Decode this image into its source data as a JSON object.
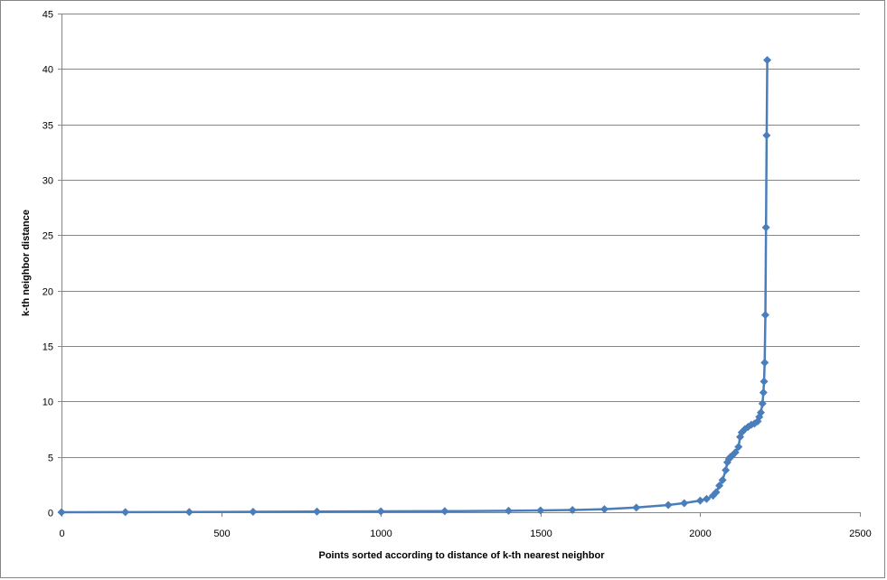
{
  "chart_data": {
    "type": "line",
    "title": "",
    "xlabel": "Points sorted according  to distance of k-th nearest neighbor",
    "ylabel": "k-th neighbor distance",
    "xlim": [
      0,
      2500
    ],
    "ylim": [
      0,
      45
    ],
    "x_ticks": [
      0,
      500,
      1000,
      1500,
      2000,
      2500
    ],
    "y_ticks": [
      0,
      5,
      10,
      15,
      20,
      25,
      30,
      35,
      40,
      45
    ],
    "grid": "horizontal",
    "legend": "none",
    "marker": "diamond",
    "series": [
      {
        "x": [
          0,
          200,
          400,
          600,
          800,
          1000,
          1200,
          1400,
          1500,
          1600,
          1700,
          1800,
          1900,
          1950,
          2000,
          2020,
          2040,
          2050,
          2060,
          2070,
          2080,
          2085,
          2090,
          2095,
          2100,
          2110,
          2120,
          2125,
          2130,
          2140,
          2150,
          2160,
          2170,
          2180,
          2185,
          2190,
          2195,
          2198,
          2200,
          2202,
          2204,
          2206,
          2208,
          2210
        ],
        "y": [
          0.0,
          0.01,
          0.02,
          0.04,
          0.06,
          0.08,
          0.1,
          0.13,
          0.16,
          0.2,
          0.28,
          0.42,
          0.65,
          0.82,
          1.05,
          1.2,
          1.5,
          1.8,
          2.4,
          2.9,
          3.8,
          4.5,
          4.8,
          5.0,
          5.1,
          5.4,
          5.9,
          6.8,
          7.2,
          7.5,
          7.7,
          7.9,
          8.0,
          8.2,
          8.6,
          9.0,
          9.8,
          10.8,
          11.8,
          13.5,
          17.8,
          25.7,
          34.0,
          40.8
        ]
      }
    ],
    "colors": {
      "series": "#4a7ebb",
      "grid": "#868686",
      "axis": "#868686"
    }
  }
}
